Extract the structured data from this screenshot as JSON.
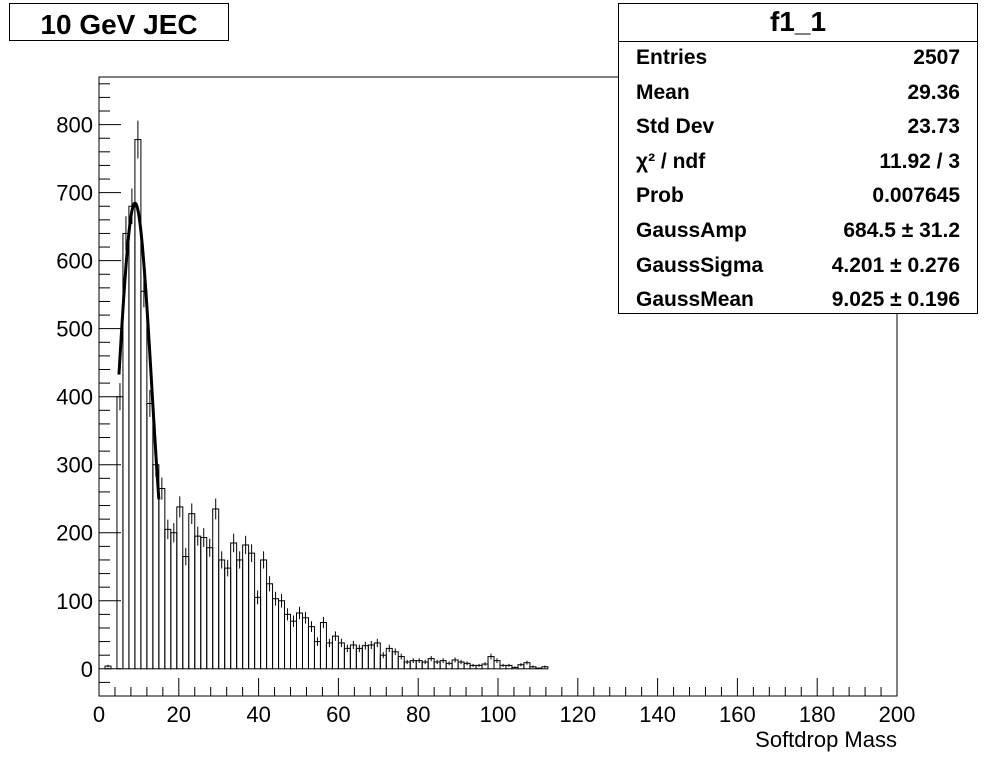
{
  "title": "10 GeV JEC",
  "stats": {
    "name": "f1_1",
    "rows": [
      {
        "key": "Entries",
        "value": "2507"
      },
      {
        "key": "Mean",
        "value": "29.36"
      },
      {
        "key": "Std Dev",
        "value": "23.73"
      },
      {
        "key": "χ² / ndf",
        "value": "11.92 / 3"
      },
      {
        "key": "Prob",
        "value": "0.007645"
      },
      {
        "key": "GaussAmp",
        "value": "684.5 ± 31.2"
      },
      {
        "key": "GaussSigma",
        "value": "4.201 ± 0.276"
      },
      {
        "key": "GaussMean",
        "value": "9.025 ± 0.196"
      }
    ]
  },
  "chart_data": {
    "type": "bar",
    "xlabel": "Softdrop Mass",
    "ylabel": "",
    "xlim": [
      0,
      200
    ],
    "ylim": [
      -40,
      870
    ],
    "xticks": [
      0,
      20,
      40,
      60,
      80,
      100,
      120,
      140,
      160,
      180,
      200
    ],
    "yticks": [
      0,
      100,
      200,
      300,
      400,
      500,
      600,
      700,
      800
    ],
    "bin_width": 1.5,
    "bin_start": 1.5,
    "values": [
      4,
      0,
      400,
      640,
      680,
      778,
      555,
      390,
      300,
      265,
      205,
      200,
      238,
      165,
      228,
      195,
      193,
      178,
      235,
      160,
      148,
      185,
      160,
      182,
      170,
      105,
      160,
      125,
      103,
      100,
      80,
      70,
      82,
      75,
      62,
      40,
      68,
      38,
      48,
      38,
      30,
      35,
      30,
      34,
      35,
      38,
      20,
      30,
      25,
      18,
      10,
      12,
      12,
      10,
      15,
      10,
      12,
      8,
      13,
      10,
      8,
      5,
      5,
      7,
      18,
      12,
      5,
      5,
      2,
      6,
      9,
      3,
      1,
      3,
      0,
      0,
      0,
      0,
      0,
      0,
      0,
      0,
      0,
      0,
      0,
      0,
      0,
      0,
      0,
      0,
      0,
      0,
      0,
      0,
      0,
      0,
      0,
      0,
      0,
      0,
      0,
      0,
      0,
      0,
      0,
      0,
      0,
      0,
      0,
      0,
      0,
      0,
      0,
      0,
      0,
      0,
      0,
      0,
      0,
      0,
      0,
      0,
      0,
      0,
      0,
      0,
      0,
      0,
      0,
      0,
      0,
      0,
      0
    ],
    "fit": {
      "function": "gaus",
      "amplitude": 684.5,
      "mean": 9.025,
      "sigma": 4.201,
      "range": [
        5,
        15
      ]
    }
  }
}
